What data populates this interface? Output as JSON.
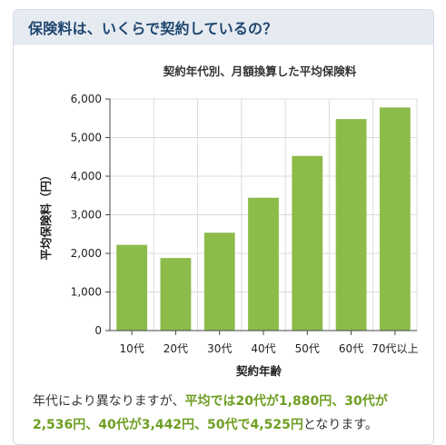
{
  "header": {
    "title": "保険料は、いくらで契約しているの？"
  },
  "chart_data": {
    "type": "bar",
    "title": "契約年代別、月額換算した平均保険料",
    "xlabel": "契約年齢",
    "ylabel": "平均保険料（円）",
    "categories": [
      "10代",
      "20代",
      "30代",
      "40代",
      "50代",
      "60代",
      "70代以上"
    ],
    "values": [
      2220,
      1880,
      2536,
      3442,
      4525,
      5480,
      5780
    ],
    "ylim": [
      0,
      6000
    ],
    "yticks": [
      "0",
      "1,000",
      "2,000",
      "3,000",
      "4,000",
      "5,000",
      "6,000"
    ],
    "grid": true,
    "bar_color": "#8cbb4a"
  },
  "caption": {
    "prefix": "年代により異なりますが、",
    "highlight": "平均では20代が1,880円、30代が2,536円、40代が3,442円、50代で4,525円",
    "suffix": "となります。"
  },
  "colors": {
    "accent": "#6e9e22",
    "header_bg": "#e6ebf2",
    "title": "#20466f"
  }
}
